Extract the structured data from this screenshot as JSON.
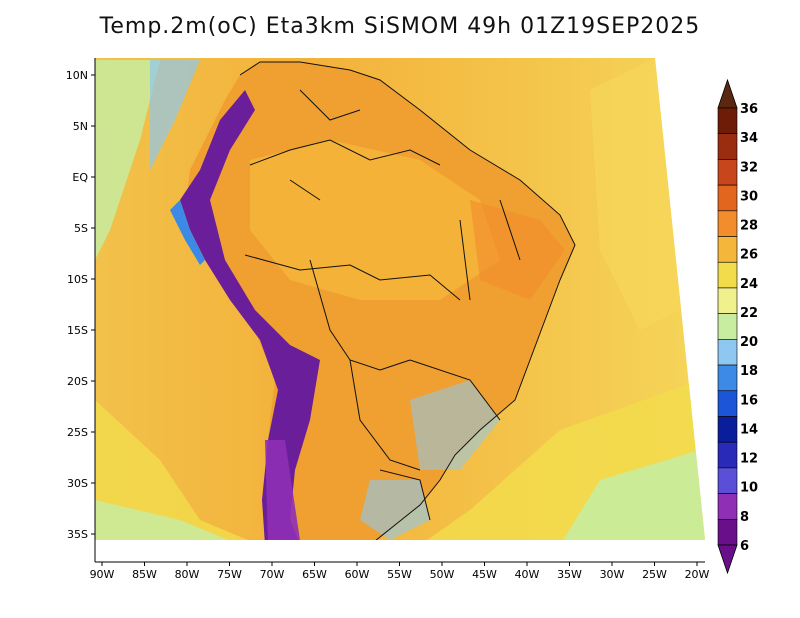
{
  "title": "Temp.2m(oC) Eta3km SiSMOM 49h 01Z19SEP2025",
  "map": {
    "lat_labels": [
      "10N",
      "5N",
      "EQ",
      "5S",
      "10S",
      "15S",
      "20S",
      "25S",
      "30S",
      "35S"
    ],
    "lon_labels": [
      "90W",
      "85W",
      "80W",
      "75W",
      "70W",
      "65W",
      "60W",
      "55W",
      "50W",
      "45W",
      "40W",
      "35W",
      "30W",
      "25W",
      "20W"
    ]
  },
  "colorbar": {
    "labels": [
      "6",
      "8",
      "10",
      "12",
      "14",
      "16",
      "18",
      "20",
      "22",
      "24",
      "26",
      "28",
      "30",
      "32",
      "34",
      "36"
    ],
    "colors": [
      "#6a0f8a",
      "#8e2fb5",
      "#5a4fd6",
      "#2a2ab8",
      "#0a1e9c",
      "#1c55d8",
      "#3c8ae6",
      "#8ec8f0",
      "#c8eca0",
      "#f0f08c",
      "#f2dc4c",
      "#f5b63c",
      "#f28c2c",
      "#e2661e",
      "#c8461c",
      "#9a2c10",
      "#6e1c08"
    ],
    "under_color": "#6a0f8a",
    "over_color": "#5a2810"
  },
  "colors": {
    "ocean_warm": "#f4b23c",
    "ocean_cool": "#f5d65a",
    "land": "#f0a030",
    "andes_cold": "#6a1e9a"
  }
}
